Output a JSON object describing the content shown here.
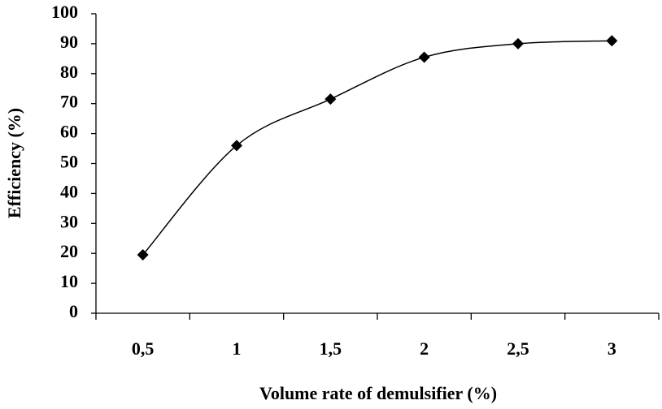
{
  "chart_data": {
    "type": "line",
    "x_label": "Volume rate of demulsifier (%)",
    "y_label": "Efficiency (%)",
    "categories": [
      "0,5",
      "1",
      "1,5",
      "2",
      "2,5",
      "3"
    ],
    "values": [
      19.5,
      56,
      71.5,
      85.5,
      90,
      91
    ],
    "color": "#000000",
    "smooth": true,
    "marker": "diamond",
    "ylim": [
      0,
      100
    ],
    "yticks": [
      0,
      10,
      20,
      30,
      40,
      50,
      60,
      70,
      80,
      90,
      100
    ]
  }
}
